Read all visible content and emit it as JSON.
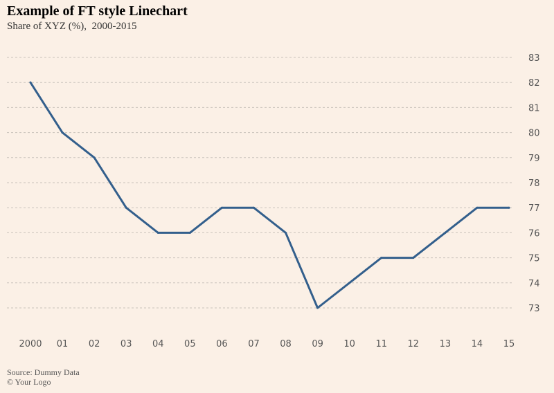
{
  "chart_data": {
    "type": "line",
    "title": "Example of FT style Linechart",
    "subtitle": "Share of XYZ (%),  2000-2015",
    "categories": [
      "2000",
      "01",
      "02",
      "03",
      "04",
      "05",
      "06",
      "07",
      "08",
      "09",
      "10",
      "11",
      "12",
      "13",
      "14",
      "15"
    ],
    "series": [
      {
        "name": "Share of XYZ (%)",
        "color": "#335f8c",
        "values": [
          82,
          80,
          79,
          77,
          76,
          76,
          77,
          77,
          76,
          73,
          74,
          75,
          75,
          76,
          77,
          77
        ]
      }
    ],
    "y_ticks": [
      73,
      74,
      75,
      76,
      77,
      78,
      79,
      80,
      81,
      82,
      83
    ],
    "ylim": [
      72,
      83.8
    ],
    "grid": true,
    "y_axis_side": "right",
    "xlabel": "",
    "ylabel": ""
  },
  "footer": {
    "source": "Source: Dummy Data",
    "logo": "© Your Logo"
  }
}
